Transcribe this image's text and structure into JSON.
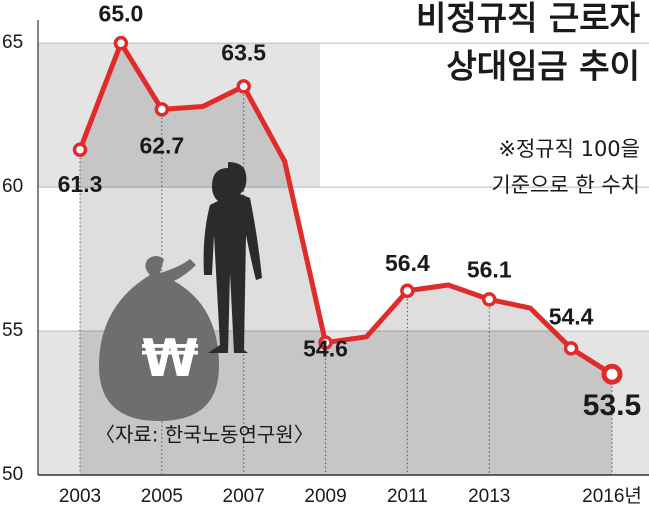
{
  "chart_data": {
    "type": "line",
    "title": [
      "비정규직 근로자",
      "상대임금 추이"
    ],
    "note": [
      "※정규직 100을",
      "기준으로 한 수치"
    ],
    "source": "〈자료: 한국노동연구원〉",
    "icon_text": "₩",
    "categories": [
      "2003",
      null,
      "2005",
      null,
      "2007",
      null,
      "2009",
      null,
      "2011",
      null,
      "2013",
      null,
      null,
      "2016년"
    ],
    "series": [
      {
        "color": "#e12b2b",
        "values": [
          61.3,
          65.0,
          62.7,
          62.8,
          63.5,
          60.9,
          54.6,
          54.8,
          56.4,
          56.6,
          56.1,
          55.8,
          54.4,
          53.5
        ],
        "value_labels": [
          "61.3",
          "65.0",
          "62.7",
          null,
          "63.5",
          null,
          "54.6",
          null,
          "56.4",
          null,
          "56.1",
          null,
          "54.4",
          "53.5"
        ]
      }
    ],
    "ylim": [
      50,
      66.5
    ],
    "yticks": [
      50,
      55,
      60,
      65
    ],
    "grid": true
  }
}
